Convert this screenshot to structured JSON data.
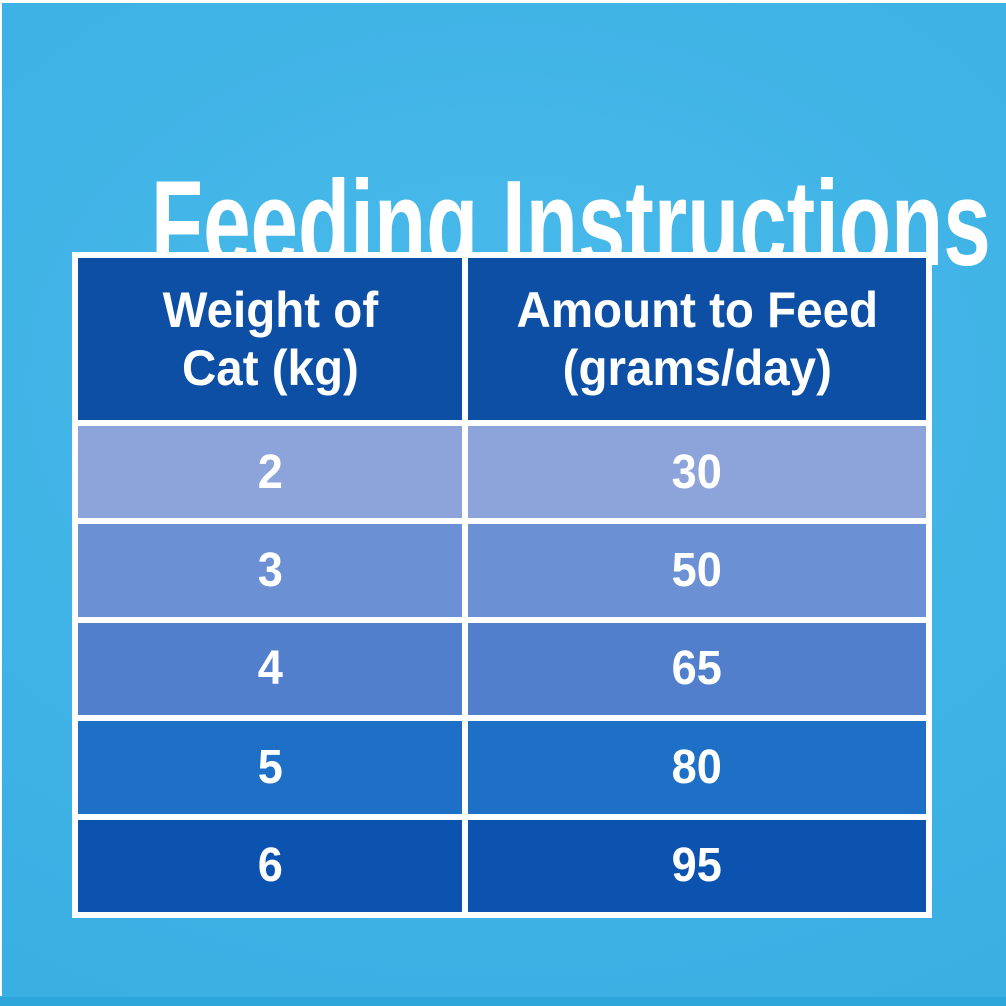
{
  "title": "Feeding Instructions",
  "colors": {
    "background": "#3EB2E5",
    "bottom_edge": "#2DA5D8",
    "table_border": "#FFFFFF",
    "header_bg": "#0D4FA5",
    "text": "#FFFFFF",
    "row_colors": [
      "#8CA4DA",
      "#6B90D3",
      "#527FCC",
      "#1D70C5",
      "#0C52AF"
    ]
  },
  "table": {
    "col1_header": {
      "line1": "Weight of",
      "line2": "Cat (kg)"
    },
    "col2_header": {
      "line1": "Amount to Feed",
      "line2": "(grams/day)"
    },
    "rows": [
      {
        "weight": "2",
        "amount": "30"
      },
      {
        "weight": "3",
        "amount": "50"
      },
      {
        "weight": "4",
        "amount": "65"
      },
      {
        "weight": "5",
        "amount": "80"
      },
      {
        "weight": "6",
        "amount": "95"
      }
    ]
  },
  "chart_data": {
    "type": "table",
    "title": "Feeding Instructions",
    "columns": [
      "Weight of Cat (kg)",
      "Amount to Feed (grams/day)"
    ],
    "rows": [
      [
        2,
        30
      ],
      [
        3,
        50
      ],
      [
        4,
        65
      ],
      [
        5,
        80
      ],
      [
        6,
        95
      ]
    ]
  }
}
